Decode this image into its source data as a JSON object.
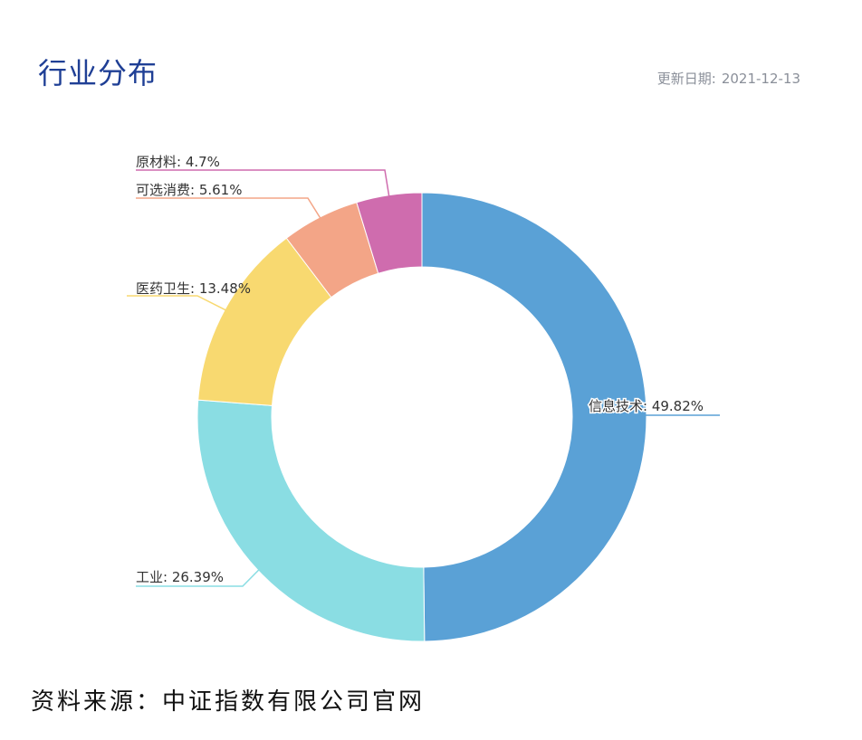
{
  "header": {
    "title": "行业分布",
    "update_label": "更新日期:",
    "update_date": "2021-12-13"
  },
  "footer": {
    "source": "资料来源：中证指数有限公司官网"
  },
  "chart_data": {
    "type": "pie",
    "donut": true,
    "title": "行业分布",
    "label_separator": ": ",
    "slices": [
      {
        "name": "信息技术",
        "value": 49.82,
        "display": "49.82%",
        "color": "#5aa1d6"
      },
      {
        "name": "工业",
        "value": 26.39,
        "display": "26.39%",
        "color": "#8adde3"
      },
      {
        "name": "医药卫生",
        "value": 13.48,
        "display": "13.48%",
        "color": "#f8d970"
      },
      {
        "name": "可选消费",
        "value": 5.61,
        "display": "5.61%",
        "color": "#f3a587"
      },
      {
        "name": "原材料",
        "value": 4.7,
        "display": "4.7%",
        "color": "#cf6cae"
      }
    ]
  }
}
